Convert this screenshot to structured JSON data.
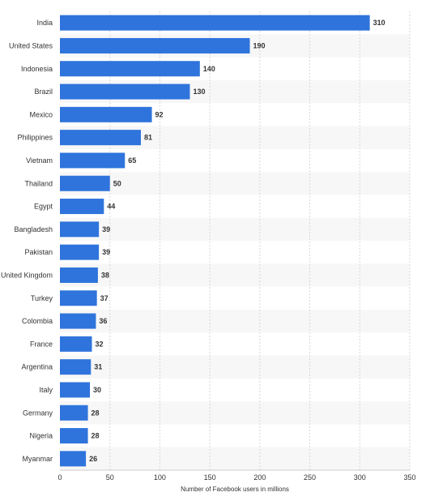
{
  "chart_data": {
    "type": "bar",
    "orientation": "horizontal",
    "title": "",
    "xlabel": "Number of Facebook users in millions",
    "ylabel": "",
    "xlim": [
      0,
      350
    ],
    "x_ticks": [
      0,
      50,
      100,
      150,
      200,
      250,
      300,
      350
    ],
    "grid": true,
    "categories": [
      "India",
      "United States",
      "Indonesia",
      "Brazil",
      "Mexico",
      "Philippines",
      "Vietnam",
      "Thailand",
      "Egypt",
      "Bangladesh",
      "Pakistan",
      "United Kingdom",
      "Turkey",
      "Colombia",
      "France",
      "Argentina",
      "Italy",
      "Germany",
      "Nigeria",
      "Myanmar"
    ],
    "values": [
      310,
      190,
      140,
      130,
      92,
      81,
      65,
      50,
      44,
      39,
      39,
      38,
      37,
      36,
      32,
      31,
      30,
      28,
      28,
      26
    ],
    "bar_color": "#2f74dc",
    "stripe_color": "#f7f7f7",
    "grid_color": "#d7d7d7"
  }
}
